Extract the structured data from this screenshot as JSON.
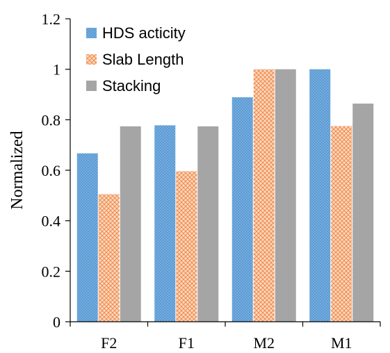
{
  "chart_data": {
    "type": "bar",
    "categories": [
      "F2",
      "F1",
      "M2",
      "M1"
    ],
    "series": [
      {
        "name": "HDS acticity",
        "values": [
          0.667,
          0.778,
          0.889,
          1.0
        ],
        "color": "#5b9bd5",
        "pattern": "dots"
      },
      {
        "name": "Slab Length",
        "values": [
          0.505,
          0.596,
          1.0,
          0.775
        ],
        "color": "#f4b183",
        "pattern": "crosshatch"
      },
      {
        "name": "Stacking",
        "values": [
          0.774,
          0.774,
          1.0,
          0.864
        ],
        "color": "#a5a5a5",
        "pattern": "solid"
      }
    ],
    "title": "",
    "xlabel": "",
    "ylabel": "Normalized",
    "ylim": [
      0,
      1.2
    ],
    "yticks": [
      "0",
      "0.2",
      "0.4",
      "0.6",
      "0.8",
      "1",
      "1.2"
    ],
    "grid": false,
    "legend_position": "top-left"
  }
}
